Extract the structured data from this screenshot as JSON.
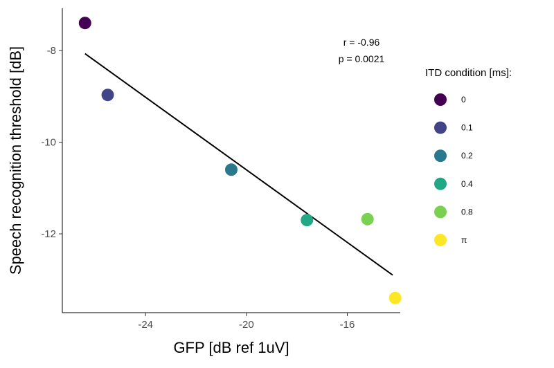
{
  "chart_data": {
    "type": "scatter",
    "xlabel": "GFP [dB ref 1uV]",
    "ylabel": "Speech recognition threshold [dB]",
    "xlim": [
      -27.3,
      -13.9
    ],
    "ylim": [
      -13.72,
      -7.08
    ],
    "x_ticks": [
      -24,
      -20,
      -16
    ],
    "y_ticks": [
      -8,
      -10,
      -12
    ],
    "x_tick_labels": [
      "-24",
      "-20",
      "-16"
    ],
    "y_tick_labels": [
      "-8",
      "-10",
      "-12"
    ],
    "series": [
      {
        "name": "0",
        "x": -26.4,
        "y": -7.4,
        "color": "#440154"
      },
      {
        "name": "0.1",
        "x": -25.5,
        "y": -8.97,
        "color": "#414487"
      },
      {
        "name": "0.2",
        "x": -20.6,
        "y": -10.6,
        "color": "#2a788e"
      },
      {
        "name": "0.4",
        "x": -17.6,
        "y": -11.7,
        "color": "#22a884"
      },
      {
        "name": "0.8",
        "x": -15.2,
        "y": -11.68,
        "color": "#7ad151"
      },
      {
        "name": "π",
        "x": -14.1,
        "y": -13.4,
        "color": "#fde725"
      }
    ],
    "fit_line": {
      "x": [
        -26.4,
        -14.2
      ],
      "y": [
        -8.07,
        -12.9
      ],
      "color": "#000000"
    },
    "annotation": {
      "r": "r = -0.96",
      "p": "p =  0.0021"
    },
    "legend": {
      "title": "ITD condition [ms]:",
      "position": "right"
    },
    "grid": false
  }
}
